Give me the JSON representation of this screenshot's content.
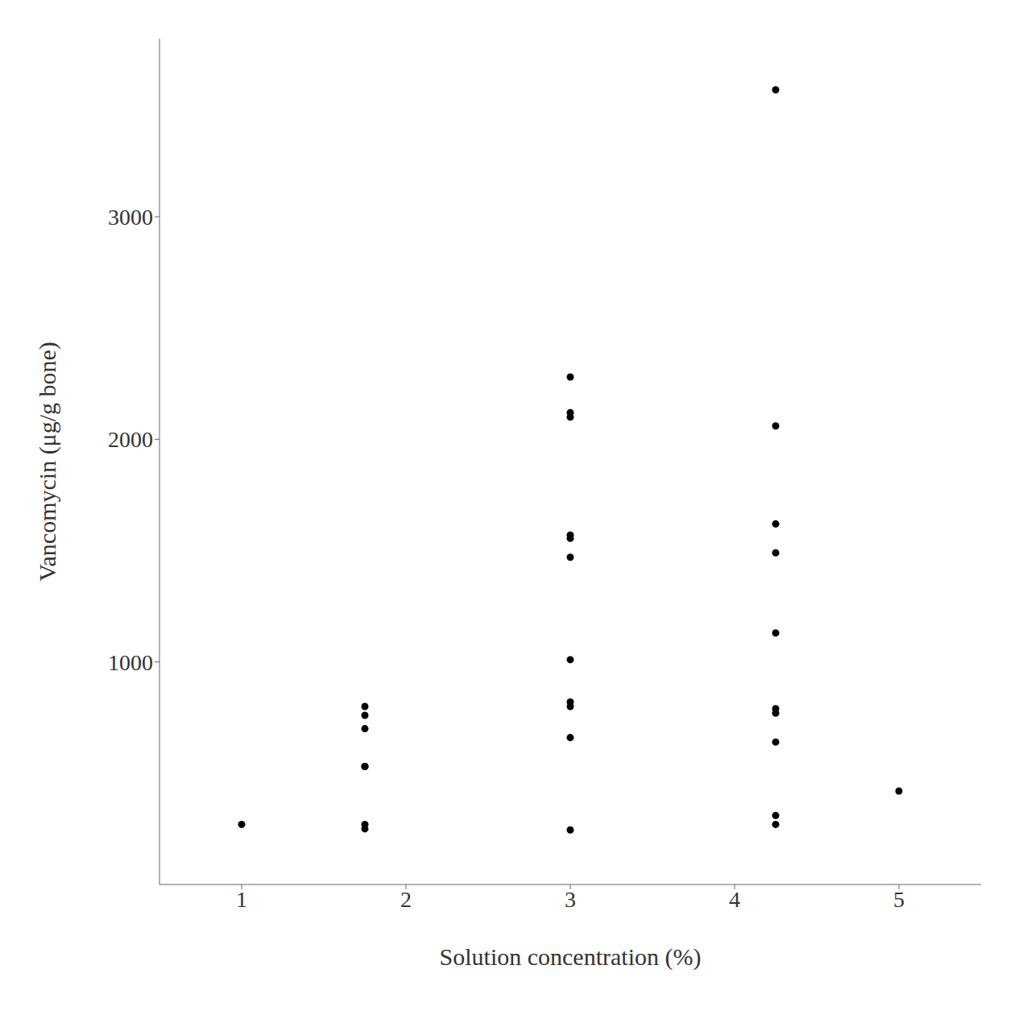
{
  "chart_data": {
    "type": "scatter",
    "xlabel": "Solution concentration (%)",
    "ylabel": "Vancomycin (μg/g bone)",
    "x": [
      1.0,
      1.75,
      1.75,
      1.75,
      1.75,
      1.75,
      1.75,
      1.75,
      3.0,
      3.0,
      3.0,
      3.0,
      3.0,
      3.0,
      3.0,
      3.0,
      3.0,
      3.0,
      3.0,
      4.25,
      4.25,
      4.25,
      4.25,
      4.25,
      4.25,
      4.25,
      4.25,
      4.25,
      4.25,
      5.0
    ],
    "values": [
      270,
      800,
      760,
      700,
      530,
      530,
      270,
      250,
      2280,
      2120,
      2100,
      1570,
      1555,
      1470,
      1010,
      820,
      800,
      660,
      245,
      3570,
      2060,
      1620,
      1490,
      1130,
      790,
      770,
      640,
      310,
      270,
      420
    ],
    "xlim": [
      0.5,
      5.5
    ],
    "ylim": [
      0,
      3800
    ],
    "xticks": [
      1,
      2,
      3,
      4,
      5
    ],
    "yticks": [
      1000,
      2000,
      3000
    ],
    "color": "#000000",
    "grid": false
  }
}
